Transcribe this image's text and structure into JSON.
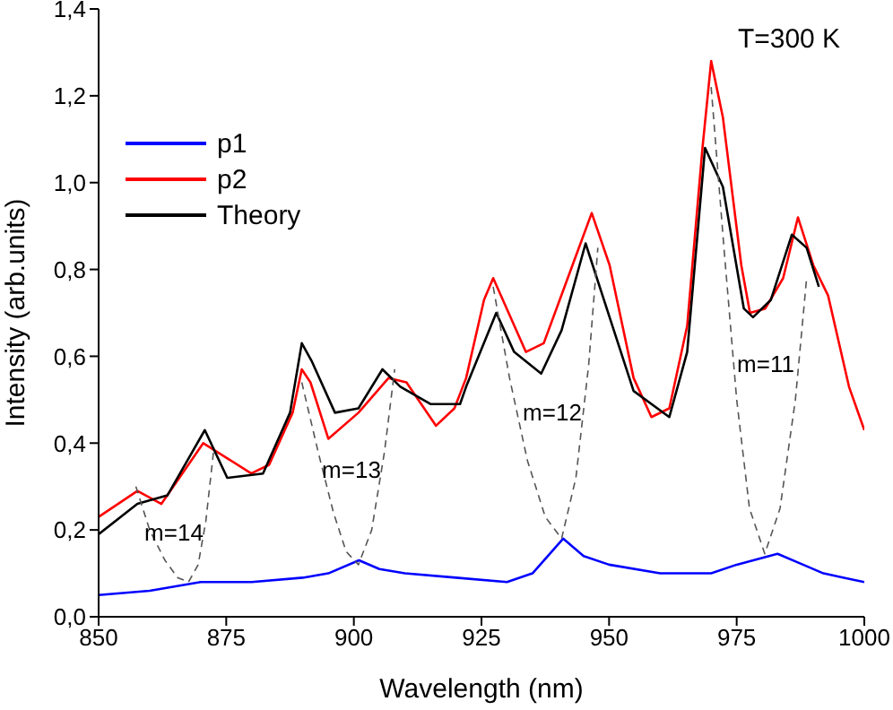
{
  "chart_data": {
    "type": "line",
    "xlabel": "Wavelength (nm)",
    "ylabel": "Intensity (arb.units)",
    "xlim": [
      850,
      1000
    ],
    "ylim": [
      0,
      1.4
    ],
    "xticks": [
      850,
      875,
      900,
      925,
      950,
      975,
      1000
    ],
    "yticks": [
      {
        "value": 0,
        "label": "0,0"
      },
      {
        "value": 0.2,
        "label": "0,2"
      },
      {
        "value": 0.4,
        "label": "0,4"
      },
      {
        "value": 0.6,
        "label": "0,6"
      },
      {
        "value": 0.8,
        "label": "0,8"
      },
      {
        "value": 1,
        "label": "1,0"
      },
      {
        "value": 1.2,
        "label": "1,2"
      },
      {
        "value": 1.4,
        "label": "1,4"
      }
    ],
    "grid": false,
    "legend": "top left",
    "marker": "none",
    "line_style": "solid",
    "series": [
      {
        "name": "p1",
        "color": "#0000ff",
        "x": [
          850,
          860,
          870,
          880,
          890,
          895,
          901,
          905,
          910,
          920,
          930,
          935,
          941,
          945,
          950,
          960,
          970,
          975,
          983,
          988,
          992,
          996,
          1000
        ],
        "values": [
          0.05,
          0.06,
          0.08,
          0.08,
          0.09,
          0.1,
          0.13,
          0.11,
          0.1,
          0.09,
          0.08,
          0.1,
          0.18,
          0.14,
          0.12,
          0.1,
          0.1,
          0.12,
          0.145,
          0.12,
          0.1,
          0.09,
          0.08
        ]
      },
      {
        "name": "p2",
        "color": "#ff0000",
        "x": [
          850,
          857.6,
          862.3,
          870.5,
          879.9,
          883.4,
          888,
          889.8,
          891.5,
          895,
          900.9,
          906.8,
          910.3,
          916.1,
          919.7,
          922,
          925.5,
          927.3,
          933.7,
          937.2,
          941.9,
          946.6,
          950.1,
          954.8,
          958.3,
          961.8,
          965.3,
          968.3,
          970,
          972.3,
          975.9,
          977.6,
          980.6,
          984.1,
          987,
          990,
          992.9,
          997,
          1000
        ],
        "values": [
          0.23,
          0.29,
          0.26,
          0.4,
          0.33,
          0.35,
          0.47,
          0.57,
          0.54,
          0.41,
          0.47,
          0.55,
          0.54,
          0.44,
          0.48,
          0.55,
          0.73,
          0.78,
          0.61,
          0.63,
          0.78,
          0.93,
          0.81,
          0.55,
          0.46,
          0.48,
          0.67,
          1.08,
          1.28,
          1.15,
          0.81,
          0.7,
          0.71,
          0.78,
          0.92,
          0.81,
          0.74,
          0.53,
          0.43
        ]
      },
      {
        "name": "Theory",
        "color": "#000000",
        "x": [
          850,
          857.6,
          863.5,
          870.8,
          875.2,
          882.2,
          887.5,
          889.8,
          891.7,
          896.3,
          900.9,
          905.6,
          909.1,
          915,
          920.8,
          922,
          927.9,
          931.4,
          936.7,
          940.7,
          945.4,
          950.1,
          954.8,
          961.8,
          965.3,
          968.8,
          972.3,
          976.4,
          978.2,
          981.7,
          985.8,
          988.7,
          991.1
        ],
        "values": [
          0.19,
          0.26,
          0.28,
          0.43,
          0.32,
          0.33,
          0.47,
          0.63,
          0.59,
          0.47,
          0.48,
          0.57,
          0.53,
          0.49,
          0.49,
          0.53,
          0.7,
          0.61,
          0.56,
          0.66,
          0.86,
          0.69,
          0.52,
          0.46,
          0.61,
          1.08,
          0.99,
          0.71,
          0.69,
          0.73,
          0.88,
          0.85,
          0.76
        ]
      },
      {
        "color": "#555555",
        "line_style": "dashed",
        "x": [
          857.3,
          860,
          863,
          865.5,
          867.6,
          869.5,
          871,
          872.6
        ],
        "values": [
          0.3,
          0.2,
          0.13,
          0.09,
          0.08,
          0.12,
          0.22,
          0.39
        ]
      },
      {
        "color": "#555555",
        "line_style": "dashed",
        "x": [
          889.8,
          893,
          896,
          898.5,
          900.9,
          903.5,
          906,
          908
        ],
        "values": [
          0.54,
          0.38,
          0.24,
          0.15,
          0.12,
          0.2,
          0.38,
          0.57
        ]
      },
      {
        "color": "#555555",
        "line_style": "dashed",
        "x": [
          927.3,
          930.5,
          934,
          937.5,
          940.7,
          943.5,
          946,
          947.8
        ],
        "values": [
          0.76,
          0.55,
          0.36,
          0.23,
          0.18,
          0.32,
          0.58,
          0.85
        ]
      },
      {
        "color": "#555555",
        "line_style": "dashed",
        "x": [
          970,
          972.5,
          975,
          977.5,
          980.5,
          983.5,
          986.5,
          988.7
        ],
        "values": [
          1.22,
          0.85,
          0.5,
          0.25,
          0.145,
          0.25,
          0.5,
          0.78
        ]
      }
    ],
    "annotations": [
      "T=300 K",
      "m=14",
      "m=13",
      "m=12",
      "m=11"
    ]
  }
}
